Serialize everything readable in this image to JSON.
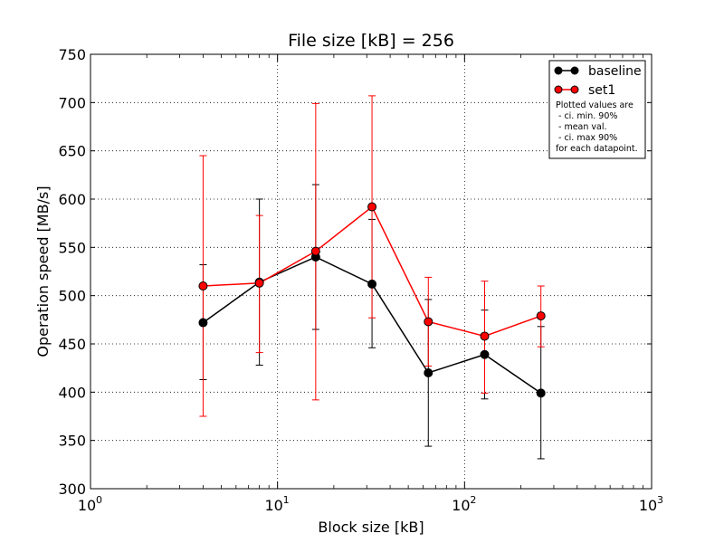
{
  "chart_data": {
    "type": "line",
    "title": "File size [kB] = 256",
    "xlabel": "Block size [kB]",
    "ylabel": "Operation speed [MB/s]",
    "xscale": "log",
    "xlim": [
      1,
      1000
    ],
    "ylim": [
      300,
      750
    ],
    "x_ticks": [
      1,
      10,
      100,
      1000
    ],
    "x_tick_labels": [
      {
        "base": "10",
        "exp": "0"
      },
      {
        "base": "10",
        "exp": "1"
      },
      {
        "base": "10",
        "exp": "2"
      },
      {
        "base": "10",
        "exp": "3"
      }
    ],
    "y_ticks": [
      300,
      350,
      400,
      450,
      500,
      550,
      600,
      650,
      700,
      750
    ],
    "y_tick_labels": [
      "300",
      "350",
      "400",
      "450",
      "500",
      "550",
      "600",
      "650",
      "700",
      "750"
    ],
    "grid": true,
    "legend_position": "top-right",
    "x": [
      4,
      8,
      16,
      32,
      64,
      128,
      256
    ],
    "series": [
      {
        "name": "baseline",
        "color": "#000000",
        "values": [
          472,
          514,
          540,
          512,
          420,
          439,
          399
        ],
        "ci_min": [
          413,
          428,
          465,
          446,
          344,
          393,
          331
        ],
        "ci_max": [
          532,
          600,
          615,
          579,
          496,
          485,
          468
        ]
      },
      {
        "name": "set1",
        "color": "#ff0000",
        "values": [
          510,
          513,
          546,
          592,
          473,
          458,
          479
        ],
        "ci_min": [
          375,
          441,
          392,
          477,
          427,
          399,
          447
        ],
        "ci_max": [
          645,
          583,
          699,
          707,
          519,
          515,
          510
        ]
      }
    ],
    "legend_note": [
      "Plotted values are",
      "- ci. min. 90%",
      "- mean val.",
      "- ci. max 90%",
      "for each datapoint."
    ]
  }
}
